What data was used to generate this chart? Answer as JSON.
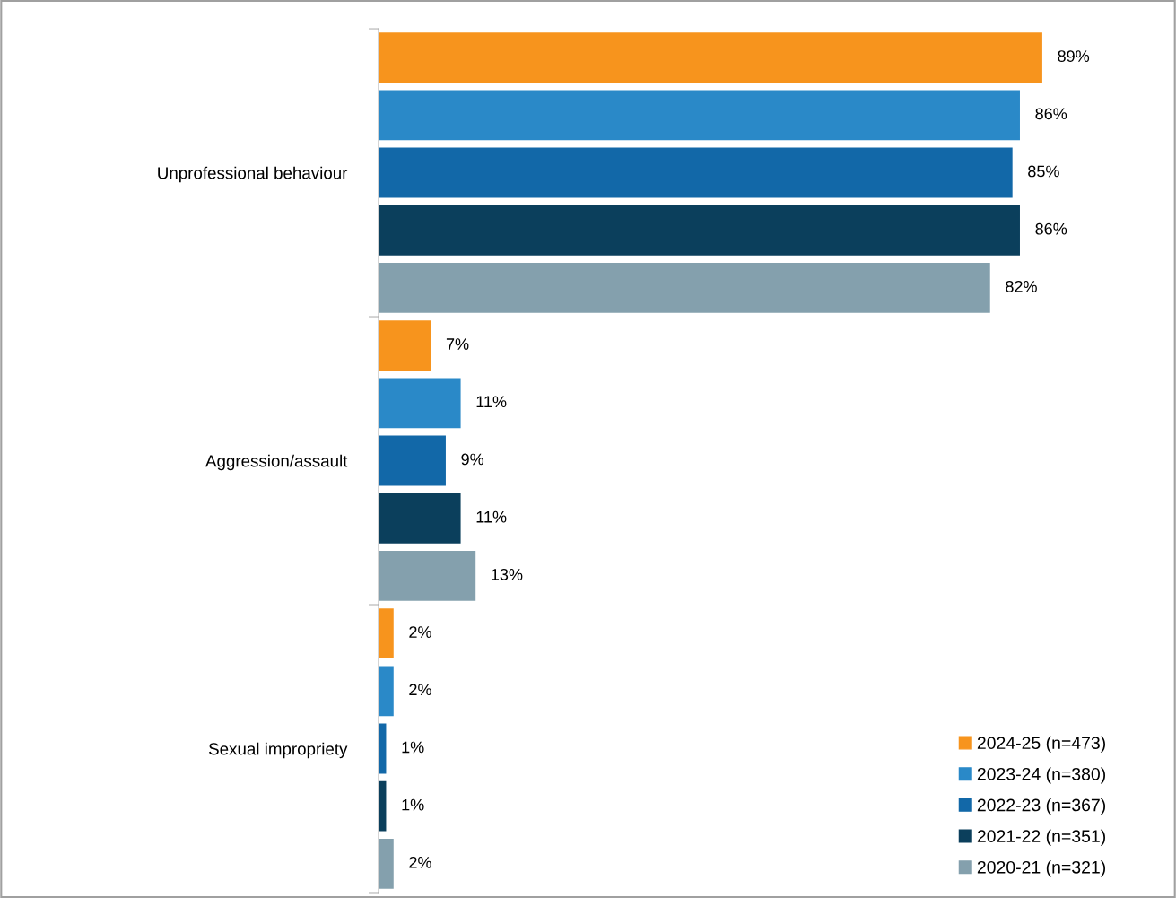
{
  "chart_data": {
    "type": "bar",
    "orientation": "horizontal",
    "categories": [
      "Unprofessional behaviour",
      "Aggression/assault",
      "Sexual impropriety"
    ],
    "series": [
      {
        "name": "2024-25 (n=473)",
        "color": "#f7941d",
        "values": [
          89,
          7,
          2
        ],
        "value_labels": [
          "89%",
          "7%",
          "2%"
        ]
      },
      {
        "name": "2023-24 (n=380)",
        "color": "#2a89c8",
        "values": [
          86,
          11,
          2
        ],
        "value_labels": [
          "86%",
          "11%",
          "2%"
        ]
      },
      {
        "name": "2022-23 (n=367)",
        "color": "#1268a8",
        "values": [
          85,
          9,
          1
        ],
        "value_labels": [
          "85%",
          "9%",
          "1%"
        ]
      },
      {
        "name": "2021-22 (n=351)",
        "color": "#0b3f5c",
        "values": [
          86,
          11,
          1
        ],
        "value_labels": [
          "86%",
          "11%",
          "1%"
        ]
      },
      {
        "name": "2020-21 (n=321)",
        "color": "#84a0ad",
        "values": [
          82,
          13,
          2
        ],
        "value_labels": [
          "82%",
          "13%",
          "2%"
        ]
      }
    ],
    "tick_labels": "y",
    "legend": "bottom right"
  }
}
